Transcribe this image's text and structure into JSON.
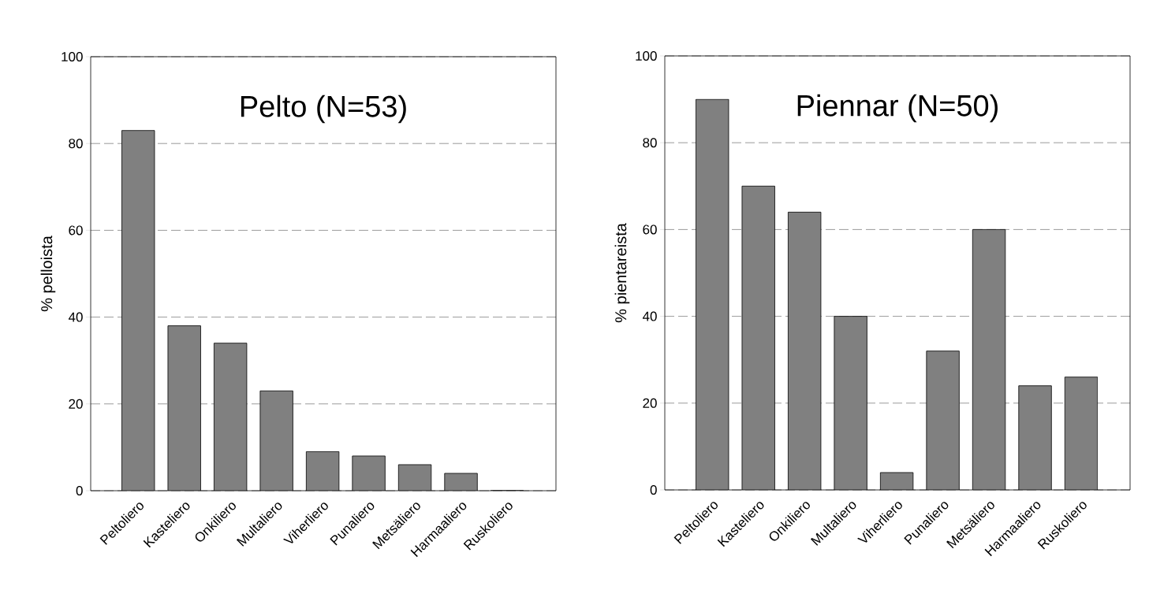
{
  "chart_data": [
    {
      "type": "bar",
      "title": "Pelto (N=53)",
      "ylabel": "% pelloista",
      "categories": [
        "Peltoliero",
        "Kasteliero",
        "Onkiliero",
        "Multaliero",
        "Viherliero",
        "Punaliero",
        "Metsäliero",
        "Harmaaliero",
        "Ruskoliero"
      ],
      "values": [
        83,
        38,
        34,
        23,
        9,
        8,
        6,
        4,
        0
      ],
      "color": "#808080",
      "ylim": [
        0,
        100
      ],
      "yticks": [
        0,
        20,
        40,
        60,
        80,
        100
      ],
      "grid": "y"
    },
    {
      "type": "bar",
      "title": "Piennar (N=50)",
      "ylabel": "% pientareista",
      "categories": [
        "Peltoliero",
        "Kasteliero",
        "Onkiliero",
        "Multaliero",
        "Viherliero",
        "Punaliero",
        "Metsäliero",
        "Harmaaliero",
        "Ruskoliero"
      ],
      "values": [
        90,
        70,
        64,
        40,
        4,
        32,
        60,
        24,
        26
      ],
      "color": "#808080",
      "ylim": [
        0,
        100
      ],
      "yticks": [
        0,
        20,
        40,
        60,
        80,
        100
      ],
      "grid": "y"
    }
  ]
}
